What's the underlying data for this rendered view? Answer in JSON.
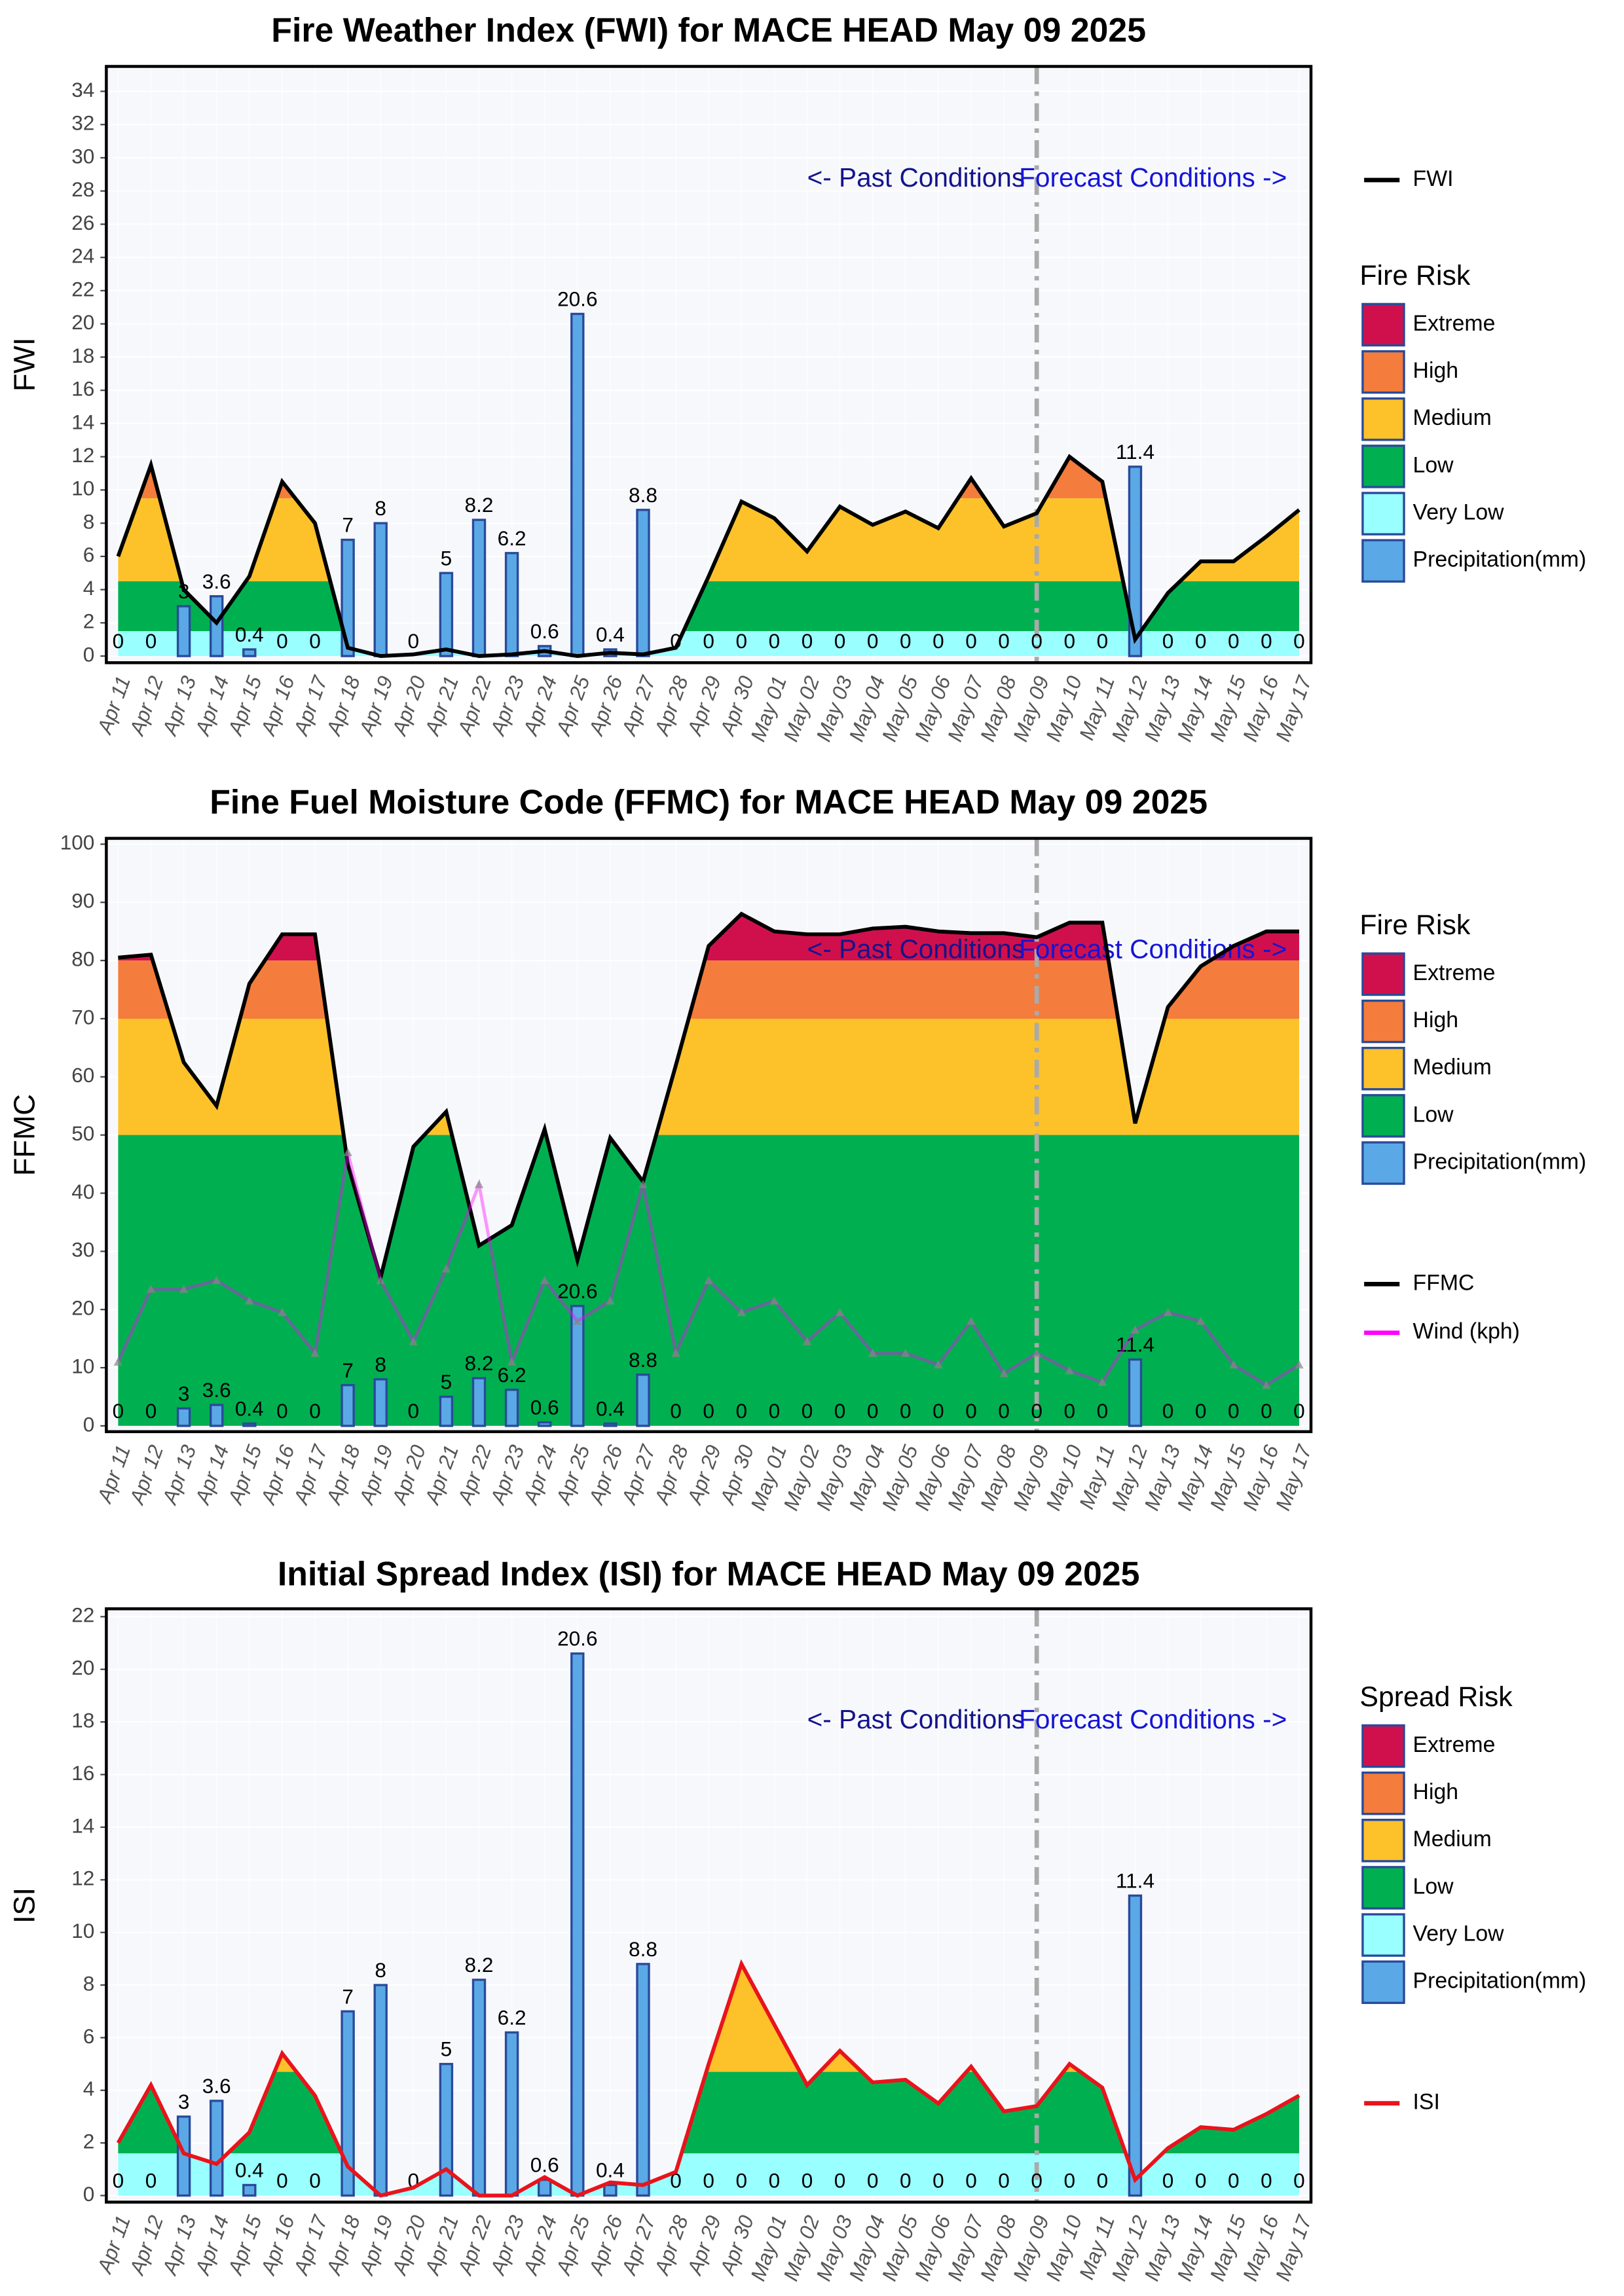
{
  "chart_data": [
    {
      "type": "combo",
      "title": "Fire Weather Index (FWI) for MACE HEAD May 09 2025",
      "y_label": "FWI",
      "categories": [
        "Apr 11",
        "Apr 12",
        "Apr 13",
        "Apr 14",
        "Apr 15",
        "Apr 16",
        "Apr 17",
        "Apr 18",
        "Apr 19",
        "Apr 20",
        "Apr 21",
        "Apr 22",
        "Apr 23",
        "Apr 24",
        "Apr 25",
        "Apr 26",
        "Apr 27",
        "Apr 28",
        "Apr 29",
        "Apr 30",
        "May 01",
        "May 02",
        "May 03",
        "May 04",
        "May 05",
        "May 06",
        "May 07",
        "May 08",
        "May 09",
        "May 10",
        "May 11",
        "May 12",
        "May 13",
        "May 14",
        "May 15",
        "May 16",
        "May 17"
      ],
      "series": [
        {
          "name": "FWI",
          "type": "line",
          "color": "#000000",
          "values": [
            6,
            11.5,
            4,
            2,
            4.8,
            10.5,
            8,
            0.5,
            0,
            0.1,
            0.4,
            0,
            0.1,
            0.3,
            0,
            0.2,
            0.1,
            0.5,
            4.8,
            9.3,
            8.3,
            6.3,
            9,
            7.9,
            8.7,
            7.7,
            10.7,
            7.8,
            8.6,
            12,
            10.5,
            1,
            3.8,
            5.7,
            5.7,
            7.2,
            8.8
          ]
        },
        {
          "name": "Precipitation(mm)",
          "type": "bar",
          "color": "#5aa9e6",
          "values": [
            0,
            0,
            3,
            3.6,
            0.4,
            0,
            0,
            7,
            8,
            0,
            5,
            8.2,
            6.2,
            0.6,
            20.6,
            0.4,
            8.8,
            0,
            0,
            0,
            0,
            0,
            0,
            0,
            0,
            0,
            0,
            0,
            0,
            0,
            0,
            11.4,
            0,
            0,
            0,
            0,
            0
          ]
        }
      ],
      "legend_title": "Fire Risk",
      "bands": [
        {
          "name": "Extreme",
          "color": "#d0104c",
          "from": 19
        },
        {
          "name": "High",
          "color": "#f47c3c",
          "from": 9.5
        },
        {
          "name": "Medium",
          "color": "#fdc12a",
          "from": 4.5
        },
        {
          "name": "Low",
          "color": "#00b050",
          "from": 1.5
        },
        {
          "name": "Very Low",
          "color": "#99ffff",
          "from": 0
        }
      ],
      "annotations": [
        "<- Past Conditions",
        "Forecast Conditions ->"
      ],
      "forecast_start": "May 09",
      "ylim": [
        -0.4,
        35.5
      ],
      "yticks": [
        0,
        2,
        4,
        6,
        8,
        10,
        12,
        14,
        16,
        18,
        20,
        22,
        24,
        26,
        28,
        30,
        32,
        34
      ],
      "grid": true
    },
    {
      "type": "combo",
      "title": "Fine Fuel Moisture Code (FFMC) for MACE HEAD May 09 2025",
      "y_label": "FFMC",
      "categories": [
        "Apr 11",
        "Apr 12",
        "Apr 13",
        "Apr 14",
        "Apr 15",
        "Apr 16",
        "Apr 17",
        "Apr 18",
        "Apr 19",
        "Apr 20",
        "Apr 21",
        "Apr 22",
        "Apr 23",
        "Apr 24",
        "Apr 25",
        "Apr 26",
        "Apr 27",
        "Apr 28",
        "Apr 29",
        "Apr 30",
        "May 01",
        "May 02",
        "May 03",
        "May 04",
        "May 05",
        "May 06",
        "May 07",
        "May 08",
        "May 09",
        "May 10",
        "May 11",
        "May 12",
        "May 13",
        "May 14",
        "May 15",
        "May 16",
        "May 17"
      ],
      "series": [
        {
          "name": "FFMC",
          "type": "line",
          "color": "#000000",
          "values": [
            80.5,
            81,
            62.5,
            55,
            76,
            84.5,
            84.5,
            45,
            25.5,
            48,
            54,
            31,
            34.5,
            51,
            28.5,
            49.5,
            42,
            62,
            82.5,
            88,
            85,
            84.5,
            84.5,
            85.5,
            85.8,
            85,
            84.7,
            84.7,
            84,
            86.5,
            86.5,
            52,
            72,
            79,
            82.5,
            85,
            85
          ]
        },
        {
          "name": "Wind (kph)",
          "type": "line",
          "color": "#ff00ff",
          "values": [
            11,
            23.5,
            23.5,
            25,
            21.5,
            19.5,
            12.5,
            47,
            25,
            14.5,
            27,
            41.5,
            11,
            25,
            18,
            21.5,
            41.5,
            12.5,
            25,
            19.5,
            21.5,
            14.5,
            19.5,
            12.5,
            12.5,
            10.5,
            18,
            9,
            12.5,
            9.5,
            7.5,
            16.5,
            19.5,
            18,
            10.5,
            7,
            10.5
          ]
        },
        {
          "name": "Precipitation(mm)",
          "type": "bar",
          "color": "#5aa9e6",
          "values": [
            0,
            0,
            3,
            3.6,
            0.4,
            0,
            0,
            7,
            8,
            0,
            5,
            8.2,
            6.2,
            0.6,
            20.6,
            0.4,
            8.8,
            0,
            0,
            0,
            0,
            0,
            0,
            0,
            0,
            0,
            0,
            0,
            0,
            0,
            0,
            11.4,
            0,
            0,
            0,
            0,
            0
          ]
        }
      ],
      "legend_title": "Fire Risk",
      "bands": [
        {
          "name": "Extreme",
          "color": "#d0104c",
          "from": 80
        },
        {
          "name": "High",
          "color": "#f47c3c",
          "from": 70
        },
        {
          "name": "Medium",
          "color": "#fdc12a",
          "from": 50
        },
        {
          "name": "Low",
          "color": "#00b050",
          "from": 0
        }
      ],
      "annotations": [
        "<- Past Conditions",
        "Forecast Conditions ->"
      ],
      "forecast_start": "May 09",
      "ylim": [
        -1,
        101
      ],
      "yticks": [
        0,
        10,
        20,
        30,
        40,
        50,
        60,
        70,
        80,
        90,
        100
      ],
      "grid": true
    },
    {
      "type": "combo",
      "title": "Initial Spread Index (ISI) for MACE HEAD May 09 2025",
      "y_label": "ISI",
      "categories": [
        "Apr 11",
        "Apr 12",
        "Apr 13",
        "Apr 14",
        "Apr 15",
        "Apr 16",
        "Apr 17",
        "Apr 18",
        "Apr 19",
        "Apr 20",
        "Apr 21",
        "Apr 22",
        "Apr 23",
        "Apr 24",
        "Apr 25",
        "Apr 26",
        "Apr 27",
        "Apr 28",
        "Apr 29",
        "Apr 30",
        "May 01",
        "May 02",
        "May 03",
        "May 04",
        "May 05",
        "May 06",
        "May 07",
        "May 08",
        "May 09",
        "May 10",
        "May 11",
        "May 12",
        "May 13",
        "May 14",
        "May 15",
        "May 16",
        "May 17"
      ],
      "series": [
        {
          "name": "ISI",
          "type": "line",
          "color": "#e8141c",
          "values": [
            2,
            4.2,
            1.6,
            1.2,
            2.4,
            5.4,
            3.8,
            1.1,
            0,
            0.3,
            1,
            0,
            0,
            0.7,
            0,
            0.5,
            0.4,
            0.9,
            5,
            8.8,
            6.5,
            4.2,
            5.5,
            4.3,
            4.4,
            3.5,
            4.9,
            3.2,
            3.4,
            5,
            4.1,
            0.6,
            1.8,
            2.6,
            2.5,
            3.1,
            3.8
          ]
        },
        {
          "name": "Precipitation(mm)",
          "type": "bar",
          "color": "#5aa9e6",
          "values": [
            0,
            0,
            3,
            3.6,
            0.4,
            0,
            0,
            7,
            8,
            0,
            5,
            8.2,
            6.2,
            0.6,
            20.6,
            0.4,
            8.8,
            0,
            0,
            0,
            0,
            0,
            0,
            0,
            0,
            0,
            0,
            0,
            0,
            0,
            0,
            11.4,
            0,
            0,
            0,
            0,
            0
          ]
        }
      ],
      "legend_title": "Spread Risk",
      "bands": [
        {
          "name": "Extreme",
          "color": "#d0104c",
          "from": 16
        },
        {
          "name": "High",
          "color": "#f47c3c",
          "from": 10
        },
        {
          "name": "Medium",
          "color": "#fdc12a",
          "from": 4.7
        },
        {
          "name": "Low",
          "color": "#00b050",
          "from": 1.6
        },
        {
          "name": "Very Low",
          "color": "#99ffff",
          "from": 0
        }
      ],
      "annotations": [
        "<- Past Conditions",
        "Forecast Conditions ->"
      ],
      "forecast_start": "May 09",
      "ylim": [
        -0.25,
        22.3
      ],
      "yticks": [
        0,
        2,
        4,
        6,
        8,
        10,
        12,
        14,
        16,
        18,
        20,
        22
      ],
      "grid": true
    }
  ]
}
